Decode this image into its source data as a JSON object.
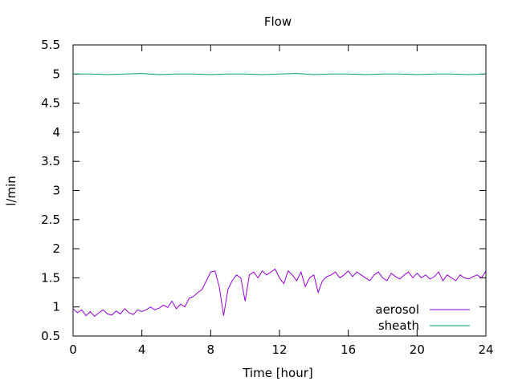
{
  "chart_data": {
    "type": "line",
    "title": "Flow",
    "xlabel": "Time [hour]",
    "ylabel": "l/min",
    "xlim": [
      0,
      24
    ],
    "ylim": [
      0.5,
      5.5
    ],
    "xticks": [
      0,
      4,
      8,
      12,
      16,
      20,
      24
    ],
    "yticks": [
      0.5,
      1,
      1.5,
      2,
      2.5,
      3,
      3.5,
      4,
      4.5,
      5,
      5.5
    ],
    "xtick_labels": [
      "0",
      "4",
      "8",
      "12",
      "16",
      "20",
      "24"
    ],
    "ytick_labels": [
      "0.5",
      "1",
      "1.5",
      "2",
      "2.5",
      "3",
      "3.5",
      "4",
      "4.5",
      "5",
      "5.5"
    ],
    "grid": false,
    "legend_position": "bottom-right",
    "series": [
      {
        "name": "aerosol",
        "color": "#9400d3",
        "x": [
          0,
          0.25,
          0.5,
          0.75,
          1,
          1.25,
          1.5,
          1.75,
          2,
          2.25,
          2.5,
          2.75,
          3,
          3.25,
          3.5,
          3.75,
          4,
          4.25,
          4.5,
          4.75,
          5,
          5.25,
          5.5,
          5.75,
          6,
          6.25,
          6.5,
          6.75,
          7,
          7.25,
          7.5,
          7.75,
          8,
          8.25,
          8.5,
          8.75,
          9,
          9.25,
          9.5,
          9.75,
          10,
          10.25,
          10.5,
          10.75,
          11,
          11.25,
          11.5,
          11.75,
          12,
          12.25,
          12.5,
          12.75,
          13,
          13.25,
          13.5,
          13.75,
          14,
          14.25,
          14.5,
          14.75,
          15,
          15.25,
          15.5,
          15.75,
          16,
          16.25,
          16.5,
          16.75,
          17,
          17.25,
          17.5,
          17.75,
          18,
          18.25,
          18.5,
          18.75,
          19,
          19.25,
          19.5,
          19.75,
          20,
          20.25,
          20.5,
          20.75,
          21,
          21.25,
          21.5,
          21.75,
          22,
          22.25,
          22.5,
          22.75,
          23,
          23.25,
          23.5,
          23.75,
          24
        ],
        "values": [
          0.97,
          0.9,
          0.95,
          0.85,
          0.92,
          0.84,
          0.9,
          0.95,
          0.88,
          0.86,
          0.93,
          0.88,
          0.97,
          0.9,
          0.87,
          0.95,
          0.92,
          0.95,
          1.0,
          0.95,
          0.98,
          1.03,
          0.99,
          1.1,
          0.97,
          1.05,
          1.0,
          1.15,
          1.18,
          1.25,
          1.3,
          1.45,
          1.6,
          1.62,
          1.35,
          0.85,
          1.3,
          1.45,
          1.55,
          1.5,
          1.1,
          1.55,
          1.6,
          1.5,
          1.62,
          1.55,
          1.6,
          1.65,
          1.5,
          1.4,
          1.62,
          1.55,
          1.45,
          1.6,
          1.35,
          1.5,
          1.55,
          1.25,
          1.45,
          1.52,
          1.55,
          1.6,
          1.5,
          1.55,
          1.62,
          1.52,
          1.6,
          1.55,
          1.5,
          1.45,
          1.55,
          1.6,
          1.5,
          1.45,
          1.58,
          1.52,
          1.48,
          1.55,
          1.6,
          1.5,
          1.58,
          1.5,
          1.55,
          1.48,
          1.52,
          1.6,
          1.45,
          1.55,
          1.5,
          1.45,
          1.55,
          1.5,
          1.48,
          1.52,
          1.55,
          1.5,
          1.62
        ]
      },
      {
        "name": "sheath",
        "color": "#009e73",
        "x": [
          0,
          1,
          2,
          3,
          4,
          5,
          6,
          7,
          8,
          9,
          10,
          11,
          12,
          13,
          14,
          15,
          16,
          17,
          18,
          19,
          20,
          21,
          22,
          23,
          24
        ],
        "values": [
          5.0,
          5.0,
          4.99,
          5.0,
          5.01,
          4.99,
          5.0,
          5.0,
          4.99,
          5.0,
          5.0,
          4.99,
          5.0,
          5.01,
          4.99,
          5.0,
          5.0,
          4.99,
          5.0,
          5.0,
          4.99,
          5.0,
          5.0,
          4.99,
          5.0
        ]
      }
    ]
  }
}
